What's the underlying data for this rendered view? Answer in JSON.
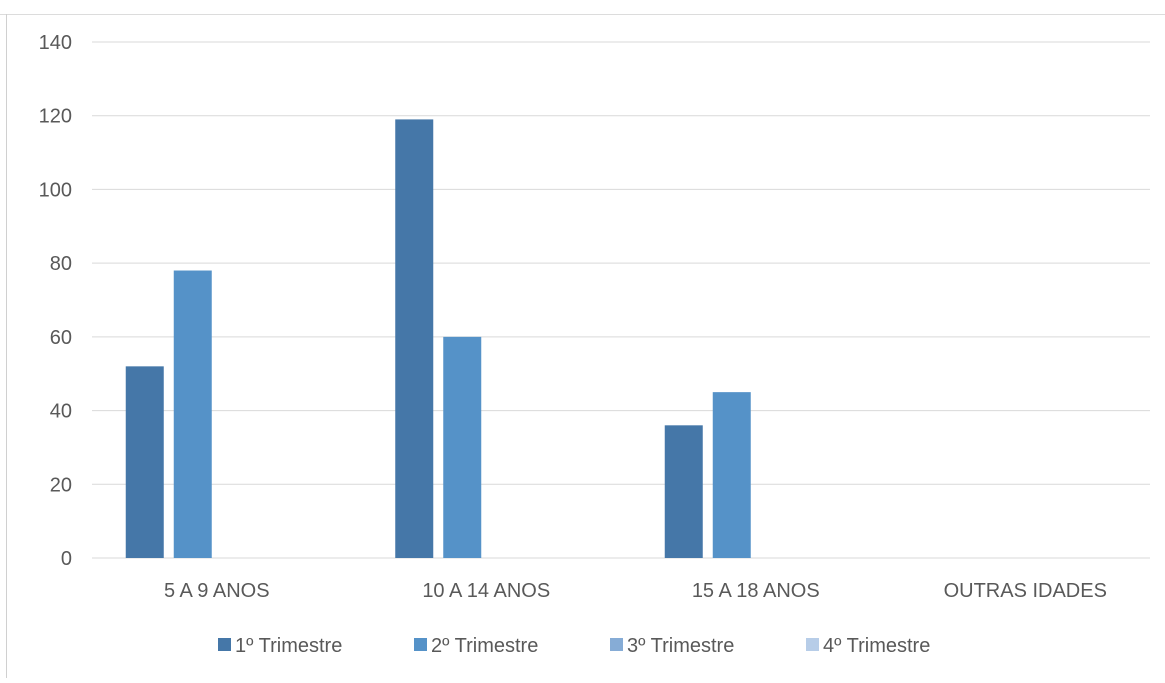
{
  "chart_data": {
    "type": "bar",
    "categories": [
      "5 A 9 ANOS",
      "10 A 14 ANOS",
      "15 A 18 ANOS",
      "OUTRAS IDADES"
    ],
    "series": [
      {
        "name": "1º Trimestre",
        "values": [
          52,
          119,
          36,
          0
        ],
        "color": "#4577a8"
      },
      {
        "name": "2º Trimestre",
        "values": [
          78,
          60,
          45,
          0
        ],
        "color": "#5592c8"
      },
      {
        "name": "3º Trimestre",
        "values": [
          0,
          0,
          0,
          0
        ],
        "color": "#86acd6"
      },
      {
        "name": "4º Trimestre",
        "values": [
          0,
          0,
          0,
          0
        ],
        "color": "#b7cde8"
      }
    ],
    "ylim": [
      0,
      140
    ],
    "yticks": [
      0,
      20,
      40,
      60,
      80,
      100,
      120,
      140
    ],
    "grid": true,
    "legend": "bottom"
  }
}
